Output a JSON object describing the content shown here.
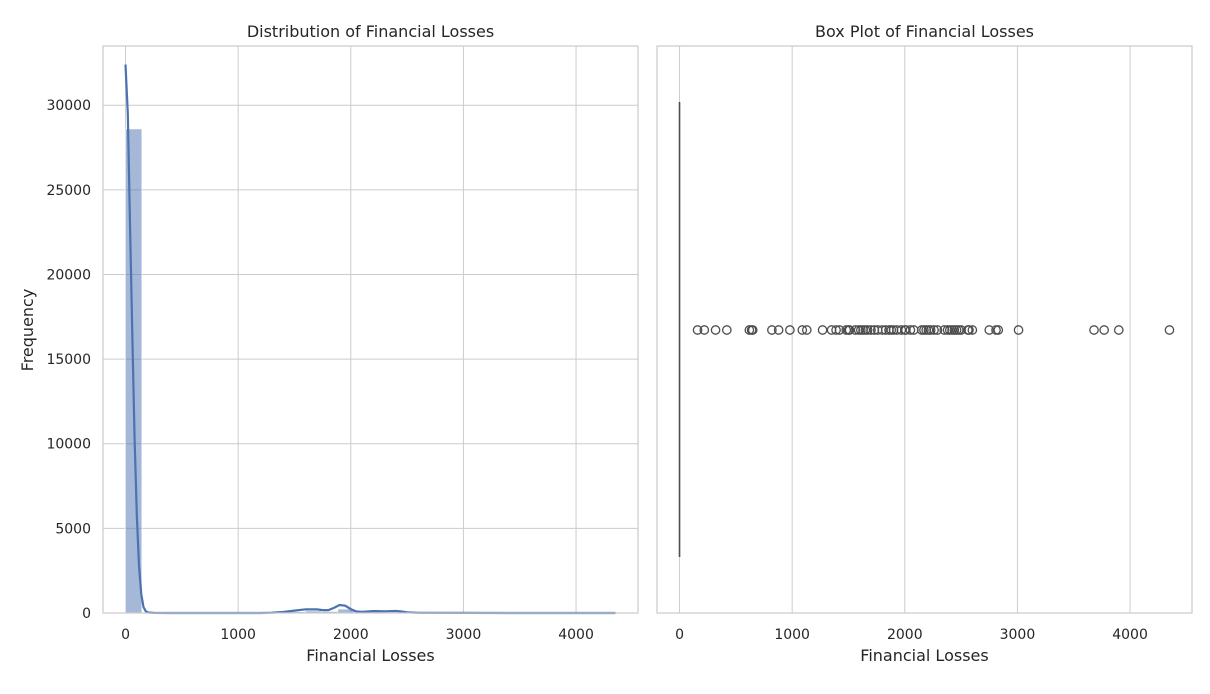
{
  "chart_data": [
    {
      "type": "histogram",
      "title": "Distribution of Financial Losses",
      "xlabel": "Financial Losses",
      "ylabel": "Frequency",
      "xlim": [
        -200,
        4550
      ],
      "ylim": [
        0,
        33500
      ],
      "xticks": [
        0,
        1000,
        2000,
        3000,
        4000
      ],
      "yticks": [
        0,
        5000,
        10000,
        15000,
        20000,
        25000,
        30000
      ],
      "grid": true,
      "bar_color": "#4c72b0",
      "bar_alpha": 0.5,
      "bins": [
        {
          "x0": 0,
          "x1": 145,
          "count": 28600
        },
        {
          "x0": 1450,
          "x1": 1595,
          "count": 80
        },
        {
          "x0": 1595,
          "x1": 1740,
          "count": 120
        },
        {
          "x0": 1740,
          "x1": 1885,
          "count": 90
        },
        {
          "x0": 1885,
          "x1": 2030,
          "count": 230
        },
        {
          "x0": 2030,
          "x1": 2175,
          "count": 60
        },
        {
          "x0": 2175,
          "x1": 2320,
          "count": 50
        },
        {
          "x0": 2320,
          "x1": 2465,
          "count": 40
        }
      ],
      "kde": {
        "color": "#4c72b0",
        "x": [
          0,
          20,
          40,
          60,
          80,
          100,
          120,
          140,
          160,
          180,
          200,
          250,
          400,
          800,
          1200,
          1300,
          1400,
          1500,
          1600,
          1700,
          1750,
          1800,
          1850,
          1900,
          1950,
          2000,
          2050,
          2100,
          2200,
          2300,
          2400,
          2450,
          2500,
          2600,
          3000,
          3500,
          4000,
          4350
        ],
        "y": [
          32400,
          29500,
          23000,
          16500,
          10500,
          5800,
          2800,
          1100,
          350,
          100,
          30,
          5,
          0,
          0,
          0,
          20,
          60,
          140,
          220,
          210,
          170,
          170,
          300,
          470,
          430,
          230,
          90,
          70,
          110,
          100,
          120,
          90,
          40,
          10,
          3,
          2,
          2,
          1
        ]
      }
    },
    {
      "type": "box",
      "title": "Box Plot of Financial Losses",
      "xlabel": "Financial Losses",
      "xlim": [
        -200,
        4550
      ],
      "xticks": [
        0,
        1000,
        2000,
        3000,
        4000
      ],
      "grid": true,
      "box": {
        "q1": 0,
        "median": 0,
        "q3": 0,
        "whisker_low": 0,
        "whisker_high": 0
      },
      "outliers": [
        160,
        220,
        320,
        420,
        620,
        640,
        650,
        820,
        880,
        980,
        1090,
        1130,
        1270,
        1350,
        1390,
        1420,
        1480,
        1500,
        1510,
        1560,
        1590,
        1610,
        1630,
        1650,
        1670,
        1700,
        1730,
        1760,
        1800,
        1830,
        1860,
        1880,
        1900,
        1930,
        1970,
        2000,
        2010,
        2050,
        2080,
        2150,
        2170,
        2190,
        2210,
        2230,
        2260,
        2290,
        2350,
        2380,
        2400,
        2420,
        2440,
        2460,
        2480,
        2500,
        2560,
        2570,
        2600,
        2750,
        2810,
        2830,
        3010,
        3680,
        3770,
        3900,
        4350
      ]
    }
  ]
}
